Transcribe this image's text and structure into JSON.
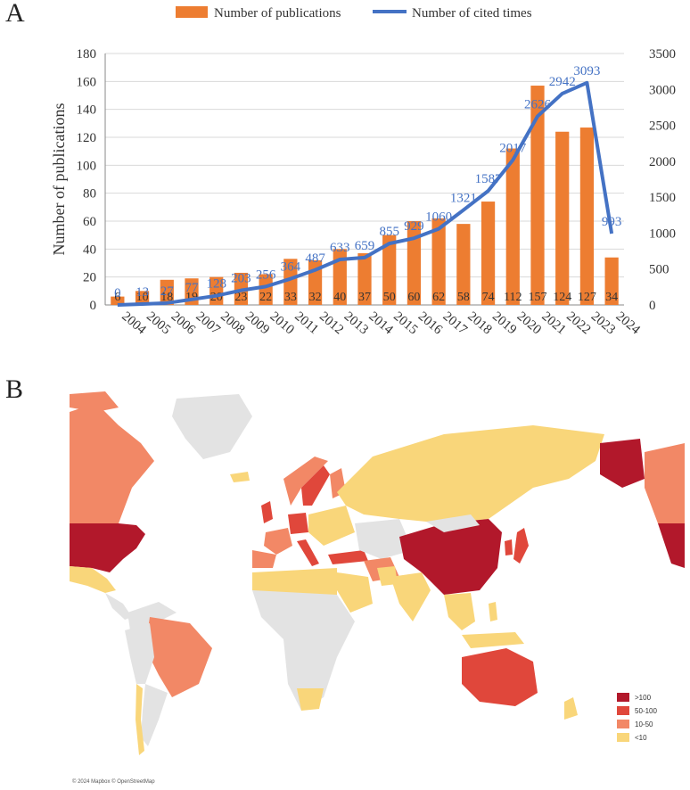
{
  "panel_a_label": "A",
  "panel_b_label": "B",
  "chart_data": {
    "type": "bar",
    "categories": [
      "2004",
      "2005",
      "2006",
      "2007",
      "2008",
      "2009",
      "2010",
      "2011",
      "2012",
      "2013",
      "2014",
      "2015",
      "2016",
      "2017",
      "2018",
      "2019",
      "2020",
      "2021",
      "2022",
      "2023",
      "2024"
    ],
    "series": [
      {
        "name": "Number of publications",
        "type": "bar",
        "axis": "left",
        "color": "#ED7D31",
        "values": [
          6,
          10,
          18,
          19,
          20,
          23,
          22,
          33,
          32,
          40,
          37,
          50,
          60,
          62,
          58,
          74,
          112,
          157,
          124,
          127,
          34
        ]
      },
      {
        "name": "Number of cited times",
        "type": "line",
        "axis": "right",
        "color": "#4472C4",
        "values": [
          0,
          13,
          27,
          77,
          128,
          203,
          256,
          364,
          487,
          633,
          659,
          855,
          929,
          1060,
          1321,
          1587,
          2017,
          2626,
          2942,
          3093,
          993
        ]
      }
    ],
    "ylabel": "Number of publications",
    "ylim": [
      0,
      180
    ],
    "yticks": [
      0,
      20,
      40,
      60,
      80,
      100,
      120,
      140,
      160,
      180
    ],
    "y2lim": [
      0,
      3500
    ],
    "y2ticks": [
      0,
      500,
      1000,
      1500,
      2000,
      2500,
      3000,
      3500
    ],
    "grid": true,
    "legend_position": "top-center"
  },
  "map": {
    "legend": [
      {
        "label": ">100",
        "color": "#B2182B"
      },
      {
        "label": "50-100",
        "color": "#E0473B"
      },
      {
        "label": "10-50",
        "color": "#F28866"
      },
      {
        "label": "<10",
        "color": "#F9D67A"
      }
    ],
    "no_data_color": "#E3E3E3",
    "attribution": "© 2024 Mapbox © OpenStreetMap"
  }
}
